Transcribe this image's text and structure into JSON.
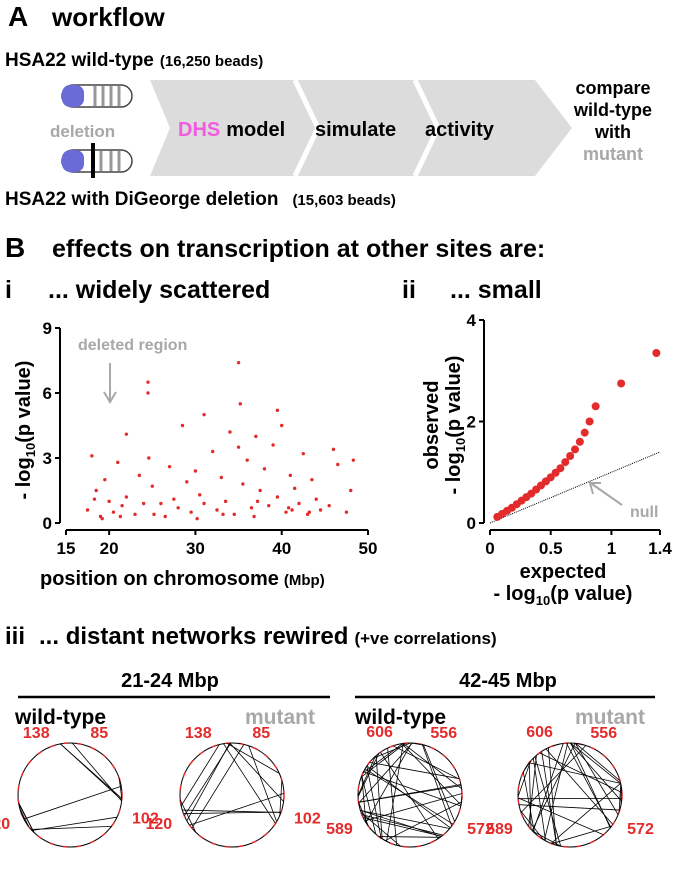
{
  "panel_a": {
    "label": "A",
    "title": "workflow",
    "wild_type": "HSA22 wild-type",
    "wild_type_beads": "(16,250 beads)",
    "deletion": "deletion",
    "steps": [
      "DHS",
      "model",
      "simulate",
      "activity"
    ],
    "compare": [
      "compare",
      "wild-type",
      "with",
      "mutant"
    ],
    "mutant": "HSA22 with DiGeorge deletion",
    "mutant_beads": "(15,603 beads)"
  },
  "panel_b": {
    "label": "B",
    "title": "effects on transcription at other sites are:",
    "sub_i": "i",
    "sub_i_title": "... widely scattered",
    "sub_ii": "ii",
    "sub_ii_title": "... small"
  },
  "chart_data": [
    {
      "type": "scatter",
      "xlabel": [
        "position on chromosome",
        "(Mbp)"
      ],
      "ylabel": [
        "- log",
        "10",
        "(p value)"
      ],
      "annotation": "deleted region",
      "color": "#e32b2b",
      "xlim": [
        15,
        50
      ],
      "xticks": [
        15,
        20,
        30,
        40,
        50
      ],
      "ylim": [
        0,
        9
      ],
      "yticks": [
        0,
        3,
        6,
        9
      ],
      "x": [
        17.5,
        18,
        18.5,
        19,
        19.5,
        20,
        20.5,
        21,
        21.5,
        22,
        22,
        23,
        23.5,
        24,
        24.5,
        24.5,
        24.6,
        25,
        26.5,
        27,
        27.5,
        28,
        28.5,
        29,
        29.5,
        30,
        30.5,
        31,
        31,
        32,
        32.5,
        33,
        33.5,
        34,
        34.5,
        35,
        35,
        35.2,
        35.5,
        36,
        36.5,
        37,
        37.5,
        38,
        38.5,
        39,
        39.5,
        39.5,
        40,
        40.5,
        41,
        41.5,
        42,
        42.5,
        43,
        43.5,
        44,
        44.5,
        45.5,
        46,
        46.5,
        47.5,
        48,
        48.3,
        19.2,
        21.3,
        26,
        30.2,
        33.2,
        36.8,
        40.8,
        43.2,
        18.3,
        25.2,
        37.2,
        41.2
      ],
      "values": [
        0.6,
        3.1,
        1.5,
        0.3,
        2.0,
        1.0,
        0.5,
        2.8,
        0.8,
        4.1,
        1.2,
        0.4,
        2.2,
        0.9,
        6.5,
        6.0,
        3.0,
        1.7,
        0.3,
        2.6,
        1.1,
        0.7,
        4.5,
        1.9,
        0.5,
        2.4,
        1.3,
        5.0,
        0.9,
        3.3,
        0.6,
        2.1,
        1.0,
        4.2,
        0.4,
        7.4,
        3.5,
        5.5,
        1.8,
        2.9,
        0.7,
        4.0,
        1.5,
        2.5,
        0.8,
        3.6,
        5.2,
        1.2,
        4.5,
        0.5,
        2.2,
        1.6,
        0.9,
        3.2,
        0.4,
        2.0,
        1.1,
        0.6,
        0.8,
        3.4,
        2.7,
        0.5,
        1.5,
        2.9,
        0.2,
        0.3,
        0.9,
        0.2,
        0.4,
        0.3,
        0.7,
        0.5,
        1.1,
        0.4,
        1.0,
        0.6
      ]
    },
    {
      "type": "scatter",
      "xlabel": [
        "expected",
        "- log",
        "10",
        "(p value)"
      ],
      "ylabel": [
        "observed",
        "- log",
        "10",
        "(p value)"
      ],
      "annotation": "null",
      "color": "#e32b2b",
      "xlim": [
        0,
        1.4
      ],
      "xticks": [
        0,
        0.5,
        1,
        1.4
      ],
      "ylim": [
        0,
        4
      ],
      "yticks": [
        0,
        2,
        4
      ],
      "x": [
        0.06,
        0.1,
        0.14,
        0.18,
        0.22,
        0.26,
        0.3,
        0.34,
        0.38,
        0.42,
        0.46,
        0.5,
        0.54,
        0.58,
        0.62,
        0.66,
        0.7,
        0.74,
        0.78,
        0.82,
        0.87,
        1.08,
        1.37
      ],
      "values": [
        0.12,
        0.18,
        0.24,
        0.3,
        0.37,
        0.44,
        0.51,
        0.58,
        0.66,
        0.74,
        0.82,
        0.9,
        0.99,
        1.08,
        1.2,
        1.32,
        1.45,
        1.6,
        1.78,
        2.0,
        2.3,
        2.75,
        3.35
      ]
    }
  ],
  "panel_c": {
    "label": "iii",
    "title": "... distant networks rewired",
    "note": "(+ve correlations)",
    "groups": [
      {
        "region": "21-24 Mbp",
        "conditions": [
          "wild-type",
          "mutant"
        ],
        "node_labels": [
          "138",
          "85",
          "102",
          "120"
        ]
      },
      {
        "region": "42-45 Mbp",
        "conditions": [
          "wild-type",
          "mutant"
        ],
        "node_labels": [
          "606",
          "556",
          "572",
          "589"
        ]
      }
    ]
  }
}
